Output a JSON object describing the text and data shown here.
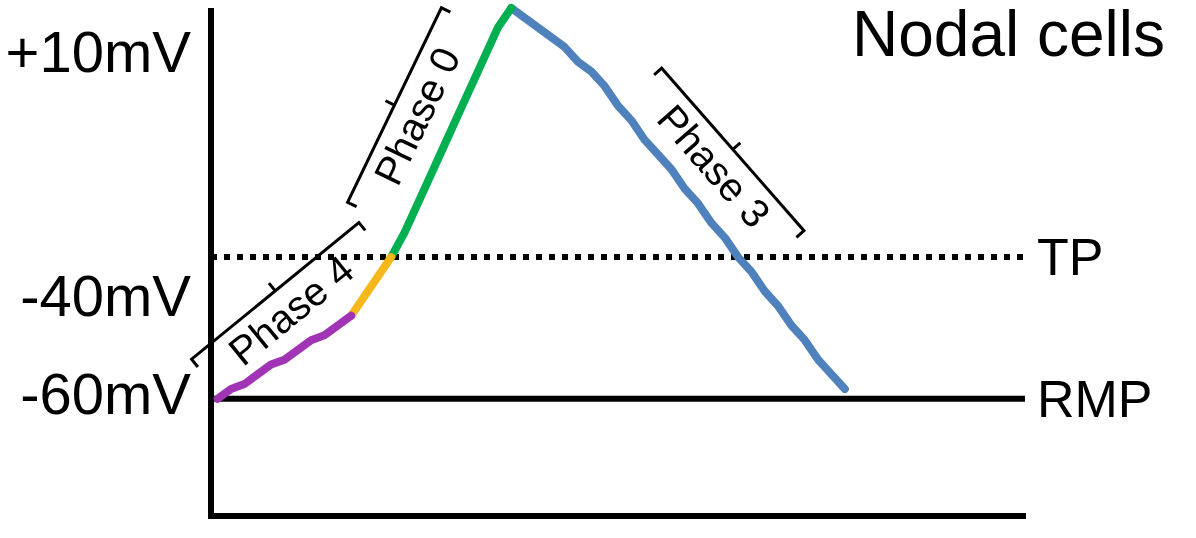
{
  "chart_data": {
    "type": "line",
    "title": "Nodal cells",
    "categories": [
      null,
      null,
      null,
      null,
      null,
      null,
      null,
      null,
      null,
      null,
      null,
      null,
      null,
      null,
      null,
      null,
      null,
      null,
      null,
      null,
      null,
      null,
      null,
      null,
      null,
      null,
      null,
      null,
      null,
      null,
      null,
      null,
      null,
      null,
      null,
      null,
      null,
      null,
      null,
      null,
      null,
      null,
      null,
      null,
      null,
      null,
      null,
      null,
      null,
      null,
      null,
      null,
      null,
      null,
      null,
      null,
      null,
      null,
      null,
      null,
      null
    ],
    "series": [
      {
        "name": "Phase 4",
        "color": "#a133b5",
        "values": [
          -61,
          -59,
          -58,
          -56,
          -54,
          -53,
          -51,
          -49,
          -48,
          -46,
          -44,
          null,
          null,
          null,
          null,
          null,
          null,
          null,
          null,
          null,
          null,
          null,
          null,
          null,
          null,
          null,
          null,
          null,
          null,
          null,
          null,
          null,
          null,
          null,
          null,
          null,
          null,
          null,
          null,
          null,
          null,
          null,
          null,
          null,
          null,
          null,
          null,
          null,
          null,
          null,
          null,
          null,
          null,
          null,
          null,
          null,
          null,
          null,
          null,
          null,
          null
        ]
      },
      {
        "color": "#f5b719",
        "values": [
          null,
          null,
          null,
          null,
          null,
          null,
          null,
          null,
          null,
          null,
          -44,
          -40,
          -36,
          -32,
          null,
          null,
          null,
          null,
          null,
          null,
          null,
          null,
          null,
          null,
          null,
          null,
          null,
          null,
          null,
          null,
          null,
          null,
          null,
          null,
          null,
          null,
          null,
          null,
          null,
          null,
          null,
          null,
          null,
          null,
          null,
          null,
          null,
          null,
          null,
          null,
          null,
          null,
          null,
          null,
          null,
          null,
          null,
          null,
          null,
          null,
          null
        ]
      },
      {
        "name": "Phase 0",
        "color": "#00b050",
        "values": [
          null,
          null,
          null,
          null,
          null,
          null,
          null,
          null,
          null,
          null,
          null,
          null,
          null,
          -32,
          -27,
          -21,
          -15,
          -9,
          -3,
          3,
          9,
          15,
          19,
          null,
          null,
          null,
          null,
          null,
          null,
          null,
          null,
          null,
          null,
          null,
          null,
          null,
          null,
          null,
          null,
          null,
          null,
          null,
          null,
          null,
          null,
          null,
          null,
          null,
          null,
          null,
          null,
          null,
          null,
          null,
          null,
          null,
          null,
          null,
          null,
          null,
          null
        ]
      },
      {
        "name": "Phase 3",
        "color": "#4f81bd",
        "values": [
          null,
          null,
          null,
          null,
          null,
          null,
          null,
          null,
          null,
          null,
          null,
          null,
          null,
          null,
          null,
          null,
          null,
          null,
          null,
          null,
          null,
          null,
          19,
          17,
          15,
          13,
          11,
          8,
          6,
          3,
          -1,
          -4,
          -8,
          -11,
          -14,
          -18,
          -21,
          -25,
          -28,
          -32,
          -35,
          -39,
          -42,
          -46,
          -49,
          -53,
          -56,
          -59,
          null,
          null,
          null,
          null,
          null,
          null,
          null,
          null,
          null,
          null,
          null,
          null,
          null
        ]
      }
    ],
    "ylim": [
      -85,
      19
    ],
    "yticks": [
      {
        "value": 10,
        "label": "+10mV"
      },
      {
        "value": -40,
        "label": "-40mV"
      },
      {
        "value": -60,
        "label": "-60mV"
      }
    ],
    "tick_labels": "y",
    "ref_lines": [
      {
        "axis": "y",
        "value": -32,
        "label": "TP",
        "color": "#000000",
        "line_style": "dotted"
      },
      {
        "axis": "y",
        "value": -61,
        "label": "RMP",
        "color": "#000000",
        "line_style": "solid"
      }
    ]
  }
}
